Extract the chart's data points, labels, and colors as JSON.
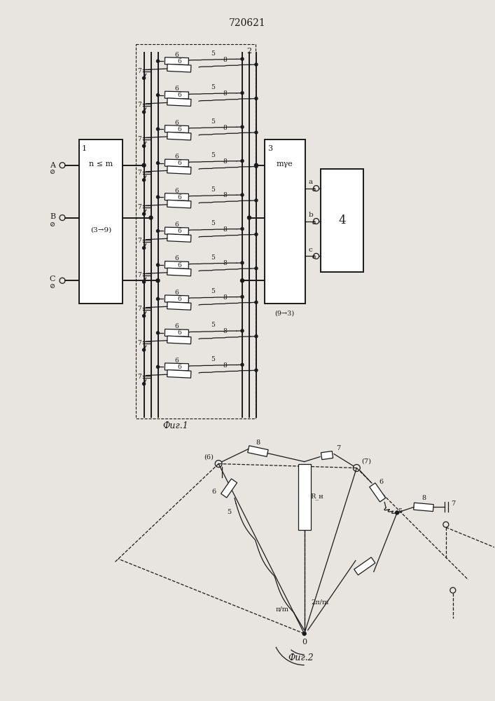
{
  "title": "720621",
  "fig1_label": "Фиг.1",
  "fig2_label": "Фиг.2",
  "bg_color": "#e8e5e0",
  "line_color": "#1a1a1a",
  "lw": 0.9,
  "lw2": 1.4
}
